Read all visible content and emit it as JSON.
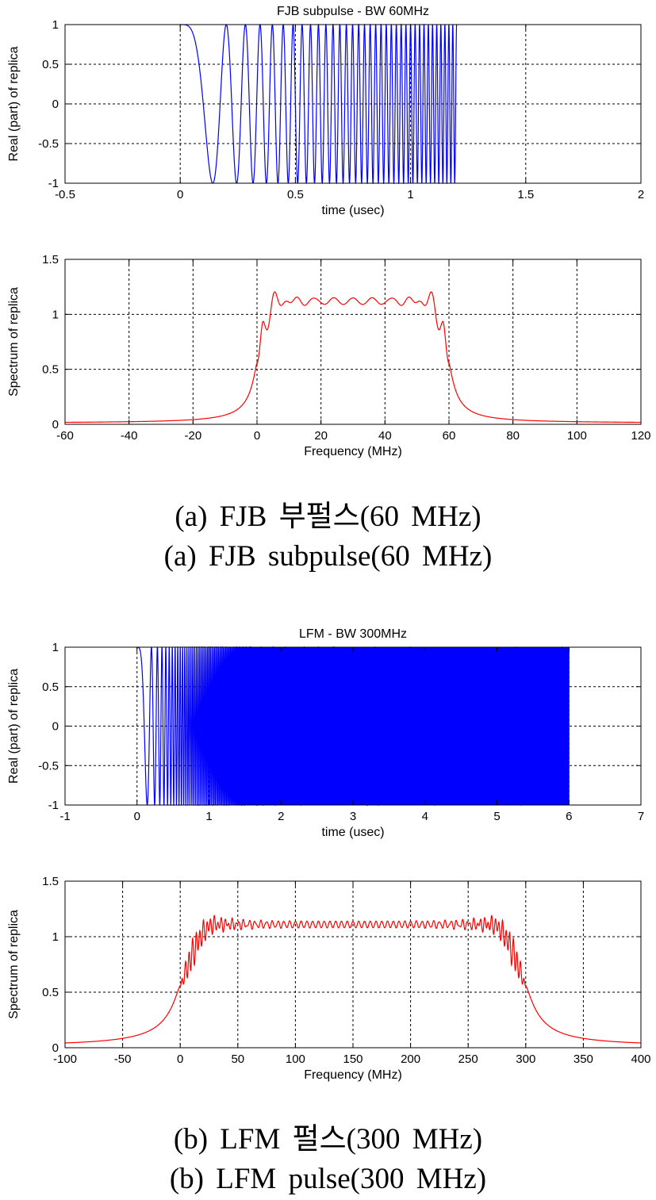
{
  "chart_data": [
    {
      "type": "line",
      "title": "FJB subpulse - BW 60MHz",
      "xlabel": "time (usec)",
      "ylabel": "Real (part) of replica",
      "xlim": [
        -0.5,
        2
      ],
      "ylim": [
        -1,
        1
      ],
      "xticks": [
        "-0.5",
        "0",
        "0.5",
        "1",
        "1.5",
        "2"
      ],
      "yticks": [
        "-1",
        "-0.5",
        "0",
        "0.5",
        "1"
      ],
      "grid": true,
      "color": "#0000ff",
      "series": [
        {
          "signal": "chirp",
          "t_start": 0,
          "t_end": 1.2,
          "f0_mhz": 0,
          "f1_mhz": 60,
          "amplitude": 1
        }
      ]
    },
    {
      "type": "line",
      "title": "",
      "xlabel": "Frequency (MHz)",
      "ylabel": "Spectrum of replica",
      "xlim": [
        -60,
        120
      ],
      "ylim": [
        0,
        1.5
      ],
      "xticks": [
        "-60",
        "-40",
        "-20",
        "0",
        "20",
        "40",
        "60",
        "80",
        "100",
        "120"
      ],
      "yticks": [
        "0",
        "0.5",
        "1",
        "1.5"
      ],
      "grid": true,
      "color": "#ff0000",
      "series": [
        {
          "signal": "spectrum",
          "band_start_mhz": 0,
          "band_end_mhz": 60,
          "level": 1.12,
          "peak": 1.32,
          "edge_value": 0.55,
          "ripples": 10
        }
      ]
    },
    {
      "type": "line",
      "title": "LFM - BW 300MHz",
      "xlabel": "time (usec)",
      "ylabel": "Real (part) of replica",
      "xlim": [
        -1,
        7
      ],
      "ylim": [
        -1,
        1
      ],
      "xticks": [
        "-1",
        "0",
        "1",
        "2",
        "3",
        "4",
        "5",
        "6",
        "7"
      ],
      "yticks": [
        "-1",
        "-0.5",
        "0",
        "0.5",
        "1"
      ],
      "grid": true,
      "color": "#0000ff",
      "series": [
        {
          "signal": "chirp",
          "t_start": 0,
          "t_end": 6,
          "f0_mhz": 0,
          "f1_mhz": 300,
          "amplitude": 1
        }
      ]
    },
    {
      "type": "line",
      "title": "",
      "xlabel": "Frequency (MHz)",
      "ylabel": "Spectrum of replica",
      "xlim": [
        -100,
        400
      ],
      "ylim": [
        0,
        1.5
      ],
      "xticks": [
        "-100",
        "-50",
        "0",
        "50",
        "100",
        "150",
        "200",
        "250",
        "300",
        "350",
        "400"
      ],
      "yticks": [
        "0",
        "0.5",
        "1",
        "1.5"
      ],
      "grid": true,
      "color": "#ff0000",
      "series": [
        {
          "signal": "spectrum",
          "band_start_mhz": 0,
          "band_end_mhz": 300,
          "level": 1.11,
          "peak": 1.3,
          "edge_value": 0.55,
          "ripples": 60
        }
      ]
    }
  ],
  "captions": {
    "a_korean": "(a) FJB 부펄스(60 MHz)",
    "a_english": "(a) FJB subpulse(60 MHz)",
    "b_korean": "(b) LFM 펄스(300 MHz)",
    "b_english": "(b) LFM pulse(300 MHz)"
  }
}
